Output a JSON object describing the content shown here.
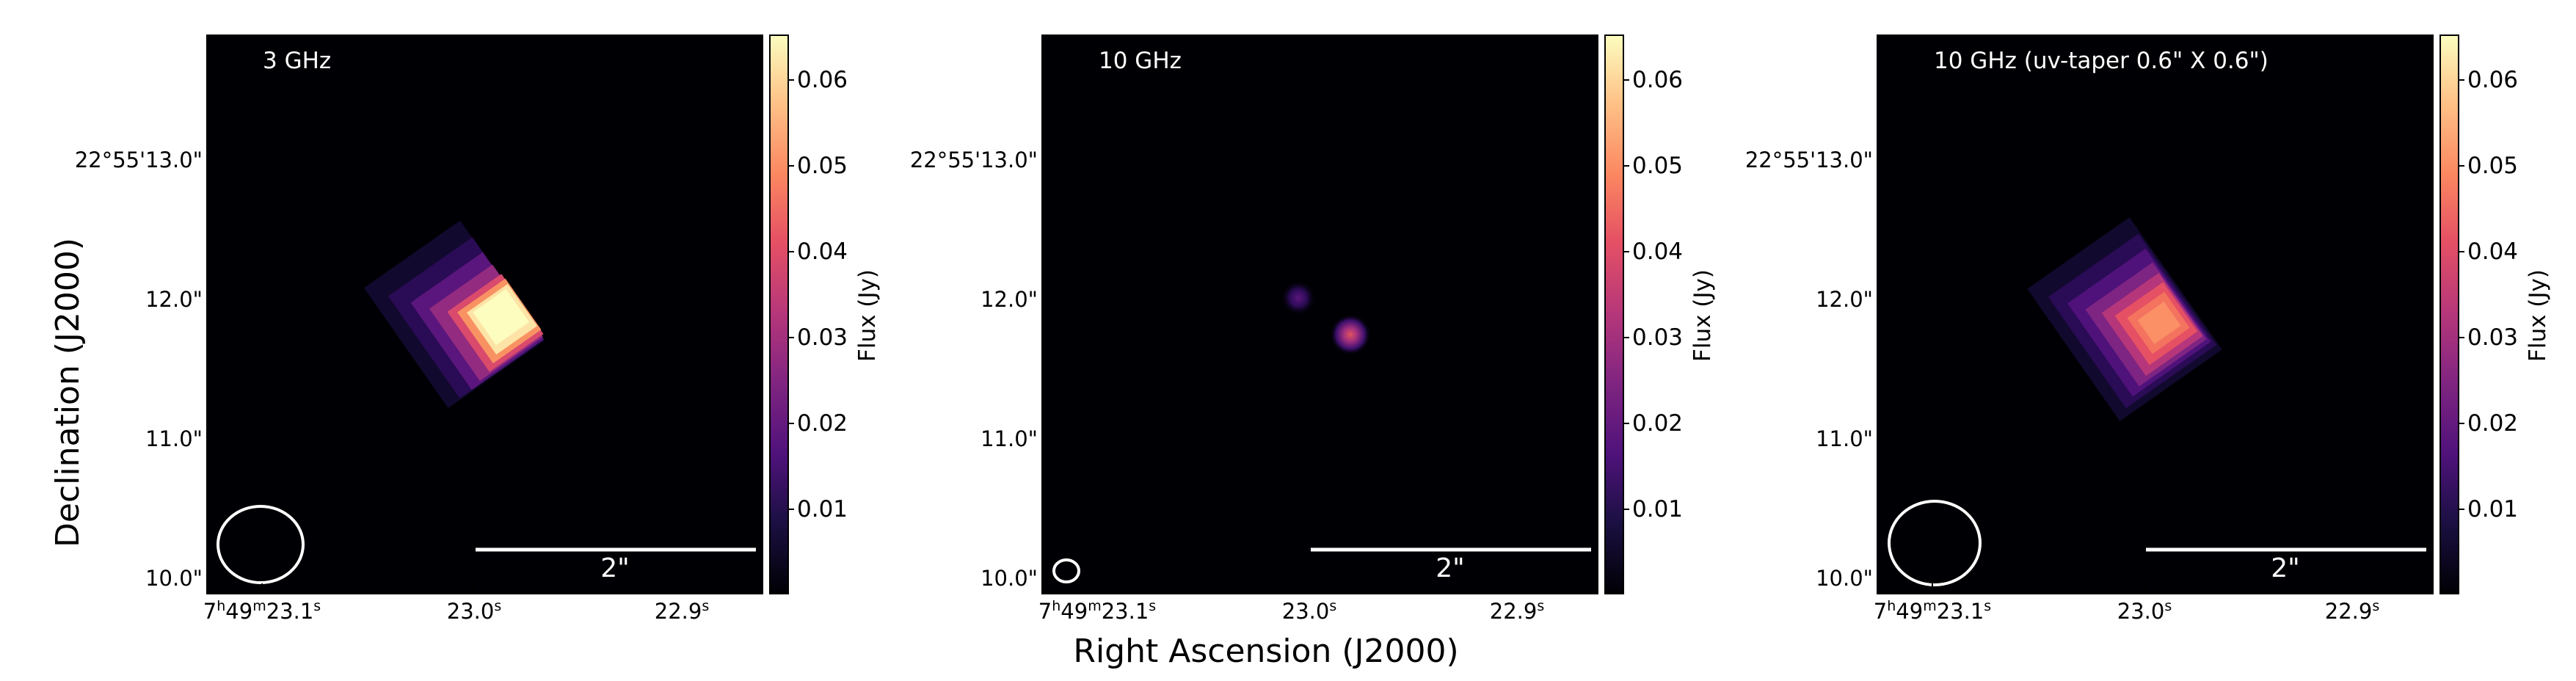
{
  "figure": {
    "xlabel": "Right Ascension (J2000)",
    "ylabel": "Declination (J2000)",
    "colorbar_label": "Flux (Jy)",
    "colorbar_ticks": [
      "0.01",
      "0.02",
      "0.03",
      "0.04",
      "0.05",
      "0.06"
    ],
    "colorbar_range": [
      0.0,
      0.065
    ],
    "colormap": "magma",
    "ytick_labels": [
      "22°55'13.0\"",
      "12.0\"",
      "11.0\"",
      "10.0\""
    ],
    "xtick_labels": [
      {
        "h": "7",
        "m": "49",
        "s": "23.1",
        "label": "7h49m23.1s"
      },
      {
        "main": "23.0",
        "label": "23.0s"
      },
      {
        "main": "22.9",
        "label": "22.9s"
      }
    ],
    "scalebar_label": "2\"",
    "background_color": "#000004"
  },
  "panels": [
    {
      "title": "3 GHz",
      "peak_flux_jy": 0.065,
      "beam": "large",
      "sources": [
        {
          "ra_offset_arcsec": 2.0,
          "dec_offset_arcsec": 1.95,
          "peak": 0.065
        }
      ]
    },
    {
      "title": "10 GHz",
      "peak_flux_jy": 0.034,
      "beam": "small",
      "sources": [
        {
          "ra_offset_arcsec": 1.9,
          "dec_offset_arcsec": 2.0,
          "peak": 0.016
        },
        {
          "ra_offset_arcsec": 2.3,
          "dec_offset_arcsec": 1.75,
          "peak": 0.034
        }
      ]
    },
    {
      "title": "10 GHz (uv-taper 0.6\" X 0.6\")",
      "peak_flux_jy": 0.043,
      "beam": "large",
      "sources": [
        {
          "ra_offset_arcsec": 2.05,
          "dec_offset_arcsec": 1.8,
          "peak": 0.043
        }
      ]
    }
  ]
}
